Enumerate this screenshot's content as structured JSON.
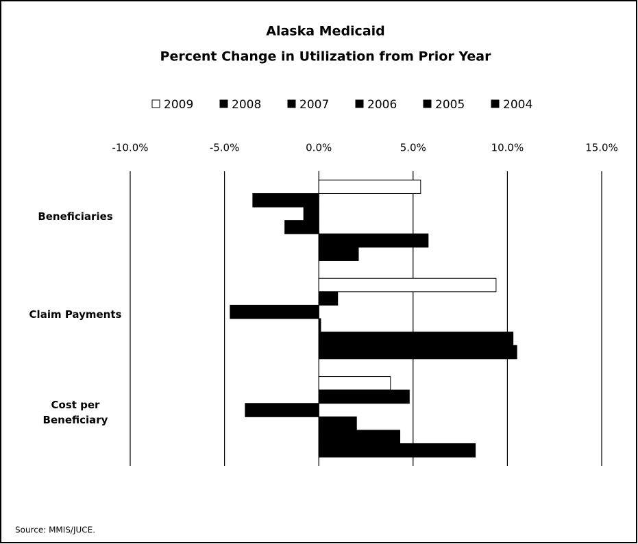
{
  "chart_data": {
    "type": "hbar",
    "title": "Alaska Medicaid",
    "subtitle": "Percent Change in Utilization from Prior Year",
    "categories": [
      "Beneficiaries",
      "Claim Payments",
      "Cost per Beneficiary"
    ],
    "series": [
      {
        "name": "2009",
        "color": "#ffffff",
        "values": [
          5.4,
          9.4,
          3.8
        ]
      },
      {
        "name": "2008",
        "color": "#000000",
        "values": [
          -3.5,
          1.0,
          4.8
        ]
      },
      {
        "name": "2007",
        "color": "#000000",
        "values": [
          -0.8,
          -4.7,
          -3.9
        ]
      },
      {
        "name": "2006",
        "color": "#000000",
        "values": [
          -1.8,
          0.1,
          2.0
        ]
      },
      {
        "name": "2005",
        "color": "#000000",
        "values": [
          5.8,
          10.3,
          4.3
        ]
      },
      {
        "name": "2004",
        "color": "#000000",
        "values": [
          2.1,
          10.5,
          8.3
        ]
      }
    ],
    "xlim": [
      -10,
      15
    ],
    "xticks": [
      {
        "value": -10,
        "label": "-10.0%"
      },
      {
        "value": -5,
        "label": "-5.0%"
      },
      {
        "value": 0,
        "label": "0.0%"
      },
      {
        "value": 5,
        "label": "5.0%"
      },
      {
        "value": 10,
        "label": "10.0%"
      },
      {
        "value": 15,
        "label": "15.0%"
      }
    ],
    "grid": true,
    "legend": "top",
    "source": "Source: MMIS/JUCE."
  }
}
